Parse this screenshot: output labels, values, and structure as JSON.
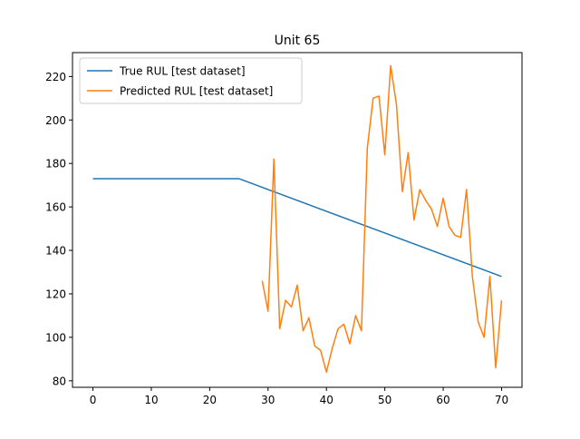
{
  "chart_data": {
    "type": "line",
    "title": "Unit 65",
    "xlabel": "",
    "ylabel": "",
    "xlim": [
      -3.5,
      73.5
    ],
    "ylim": [
      77,
      231
    ],
    "xticks": [
      0,
      10,
      20,
      30,
      40,
      50,
      60,
      70
    ],
    "yticks": [
      80,
      100,
      120,
      140,
      160,
      180,
      200,
      220
    ],
    "grid": false,
    "legend_position": "top-left",
    "series": [
      {
        "name": "True RUL [test dataset]",
        "color": "#1f77b4",
        "x": [
          0,
          25,
          70
        ],
        "y": [
          173,
          173,
          128
        ]
      },
      {
        "name": "Predicted RUL [test dataset]",
        "color": "#ff7f0e",
        "x": [
          29,
          30,
          31,
          32,
          33,
          34,
          35,
          36,
          37,
          38,
          39,
          40,
          41,
          42,
          43,
          44,
          45,
          46,
          47,
          48,
          49,
          50,
          51,
          52,
          53,
          54,
          55,
          56,
          57,
          58,
          59,
          60,
          61,
          62,
          63,
          64,
          65,
          66,
          67,
          68,
          69,
          70
        ],
        "y": [
          126,
          112,
          182,
          104,
          117,
          114,
          124,
          103,
          109,
          96,
          94,
          84,
          95,
          104,
          106,
          97,
          110,
          103,
          187,
          210,
          211,
          184,
          225,
          207,
          167,
          185,
          154,
          168,
          163,
          159,
          151,
          164,
          151,
          147,
          146,
          168,
          128,
          107,
          100,
          128,
          86,
          117
        ]
      }
    ]
  }
}
